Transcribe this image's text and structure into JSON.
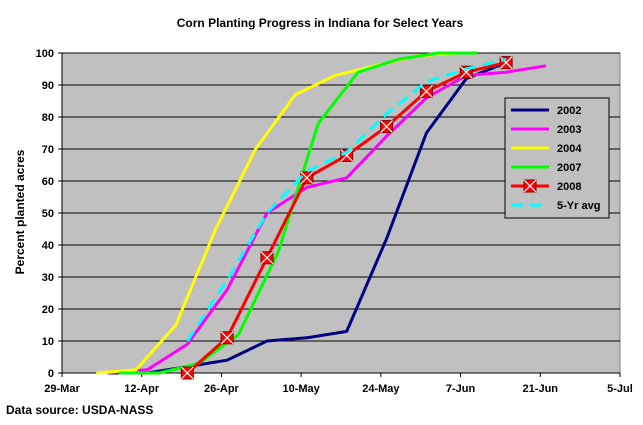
{
  "chart_data": {
    "type": "line",
    "title": "Corn Planting Progress in Indiana for Select Years",
    "xlabel": "",
    "ylabel": "Percent planted acres",
    "source_note": "Data source: USDA-NASS",
    "x_ticks": [
      "29-Mar",
      "12-Apr",
      "26-Apr",
      "10-May",
      "24-May",
      "7-Jun",
      "21-Jun",
      "5-Jul"
    ],
    "x_tick_days": [
      0,
      14,
      28,
      42,
      56,
      70,
      84,
      98
    ],
    "ylim": [
      0,
      100
    ],
    "y_ticks": [
      0,
      10,
      20,
      30,
      40,
      50,
      60,
      70,
      80,
      90,
      100
    ],
    "grid": "horizontal",
    "legend_position": "right",
    "background": "#c0c0c0",
    "series": [
      {
        "name": "2002",
        "color": "#000080",
        "dash": false,
        "marker": "none",
        "x": [
          "Apr 6",
          "Apr 13",
          "Apr 20",
          "Apr 27",
          "May 4",
          "May 11",
          "May 18",
          "May 25",
          "Jun 1",
          "Jun 8",
          "Jun 15"
        ],
        "y": [
          0,
          0,
          2,
          4,
          10,
          11,
          13,
          42,
          75,
          92,
          97
        ]
      },
      {
        "name": "2003",
        "color": "#ff00ff",
        "dash": false,
        "marker": "none",
        "x": [
          "Apr 6",
          "Apr 13",
          "Apr 20",
          "Apr 27",
          "May 4",
          "May 11",
          "May 18",
          "May 25",
          "Jun 1",
          "Jun 8",
          "Jun 15",
          "Jun 22"
        ],
        "y": [
          0,
          1,
          9,
          26,
          50,
          58,
          61,
          74,
          86,
          93,
          94,
          96
        ]
      },
      {
        "name": "2004",
        "color": "#ffff00",
        "dash": false,
        "marker": "none",
        "x": [
          "Apr 4",
          "Apr 11",
          "Apr 18",
          "Apr 25",
          "May 2",
          "May 9",
          "May 16",
          "May 23",
          "May 30",
          "Jun 6"
        ],
        "y": [
          0,
          1,
          15,
          45,
          70,
          87,
          93,
          96,
          99,
          100
        ]
      },
      {
        "name": "2007",
        "color": "#00ff00",
        "dash": false,
        "marker": "none",
        "x": [
          "Apr 8",
          "Apr 15",
          "Apr 22",
          "Apr 29",
          "May 6",
          "May 13",
          "May 20",
          "May 27",
          "Jun 3",
          "Jun 10"
        ],
        "y": [
          0,
          0,
          3,
          12,
          38,
          78,
          94,
          98,
          100,
          100
        ]
      },
      {
        "name": "2008",
        "color": "#ff0000",
        "dash": false,
        "marker": "x-box",
        "x": [
          "Apr 20",
          "Apr 27",
          "May 4",
          "May 11",
          "May 18",
          "May 25",
          "Jun 1",
          "Jun 8",
          "Jun 15"
        ],
        "y": [
          0,
          11,
          36,
          61,
          68,
          77,
          88,
          94,
          97
        ]
      },
      {
        "name": "5-Yr avg",
        "color": "#00ffff",
        "dash": true,
        "marker": "none",
        "x": [
          "Apr 20",
          "Apr 27",
          "May 4",
          "May 11",
          "May 18",
          "May 25",
          "Jun 1",
          "Jun 8",
          "Jun 15"
        ],
        "y": [
          10,
          29,
          50,
          63,
          69,
          81,
          91,
          95,
          98
        ]
      }
    ]
  }
}
